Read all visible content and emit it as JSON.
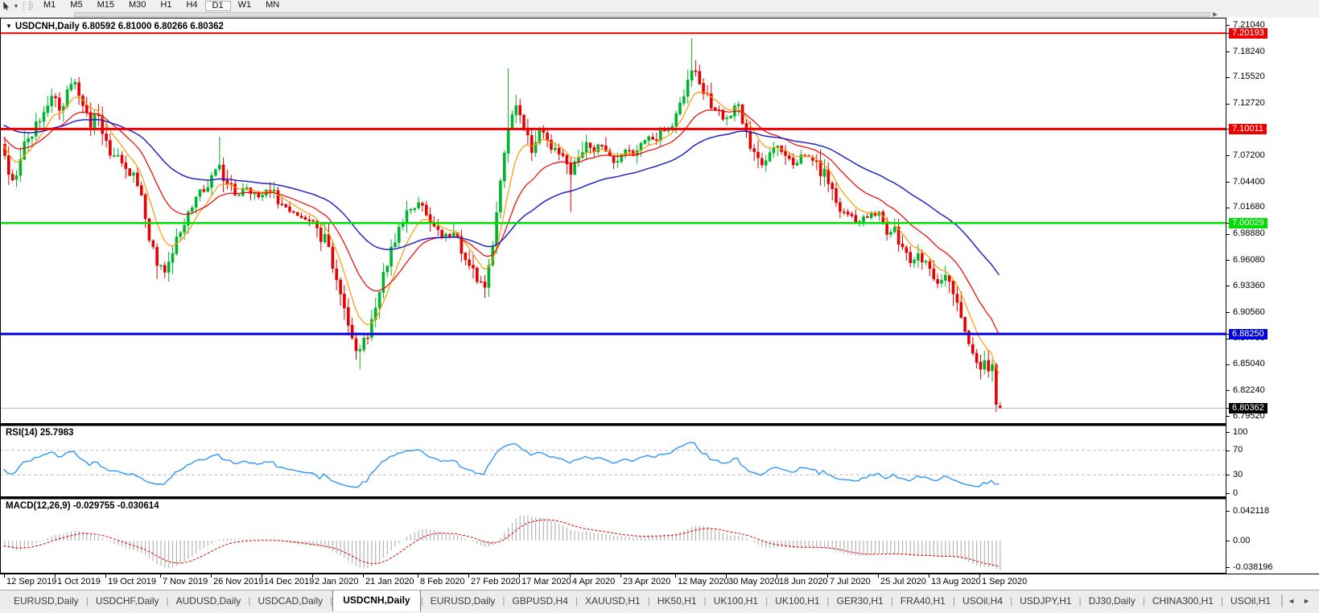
{
  "toolbar": {
    "timeframes": [
      "M1",
      "M5",
      "M15",
      "M30",
      "H1",
      "H4",
      "D1",
      "W1",
      "MN"
    ],
    "active_timeframe": "D1",
    "tool_icon": "crosshair-cursor-icon",
    "dropdown_caret": "▾"
  },
  "chart": {
    "title": "USDCNH,Daily",
    "ohlc_line": "6.80592 6.81000 6.80266 6.80362",
    "dropdown_glyph": "▼"
  },
  "chart_data": {
    "type": "candlestick",
    "symbol": "USDCNH",
    "timeframe": "Daily",
    "bars_count": 256,
    "last_bar": {
      "open": 6.80592,
      "high": 6.81,
      "low": 6.80266,
      "close": 6.80362
    },
    "close_anchors": [
      [
        0,
        7.072
      ],
      [
        2,
        7.046
      ],
      [
        4,
        7.068
      ],
      [
        6,
        7.09
      ],
      [
        8,
        7.108
      ],
      [
        10,
        7.118
      ],
      [
        12,
        7.135
      ],
      [
        14,
        7.12
      ],
      [
        16,
        7.142
      ],
      [
        18,
        7.15
      ],
      [
        20,
        7.125
      ],
      [
        22,
        7.102
      ],
      [
        24,
        7.115
      ],
      [
        26,
        7.088
      ],
      [
        28,
        7.072
      ],
      [
        31,
        7.058
      ],
      [
        34,
        7.04
      ],
      [
        36,
        7.005
      ],
      [
        38,
        6.975
      ],
      [
        39,
        6.955,
        null,
        6.941
      ],
      [
        41,
        6.948
      ],
      [
        43,
        6.968
      ],
      [
        45,
        6.99
      ],
      [
        47,
        7.012
      ],
      [
        49,
        7.028
      ],
      [
        52,
        7.038
      ],
      [
        55,
        7.062,
        7.092
      ],
      [
        57,
        7.042
      ],
      [
        59,
        7.03
      ],
      [
        62,
        7.038
      ],
      [
        65,
        7.028
      ],
      [
        68,
        7.034
      ],
      [
        71,
        7.02
      ],
      [
        74,
        7.012
      ],
      [
        77,
        7.004
      ],
      [
        80,
        6.995
      ],
      [
        83,
        6.975
      ],
      [
        85,
        6.94
      ],
      [
        87,
        6.91
      ],
      [
        89,
        6.878
      ],
      [
        91,
        6.866,
        null,
        6.845
      ],
      [
        93,
        6.878
      ],
      [
        95,
        6.91
      ],
      [
        97,
        6.948
      ],
      [
        99,
        6.975
      ],
      [
        102,
        7.0
      ],
      [
        104,
        7.015
      ],
      [
        106,
        7.022
      ],
      [
        109,
        7.0
      ],
      [
        112,
        6.985
      ],
      [
        115,
        6.99
      ],
      [
        117,
        6.968
      ],
      [
        119,
        6.955
      ],
      [
        121,
        6.938
      ],
      [
        123,
        6.932,
        null,
        6.921
      ],
      [
        125,
        6.975
      ],
      [
        127,
        7.045
      ],
      [
        129,
        7.1,
        7.1645
      ],
      [
        131,
        7.125
      ],
      [
        133,
        7.1
      ],
      [
        135,
        7.075
      ],
      [
        137,
        7.1
      ],
      [
        139,
        7.088
      ],
      [
        141,
        7.08
      ],
      [
        143,
        7.072
      ],
      [
        145,
        7.052,
        null,
        7.012
      ],
      [
        147,
        7.07
      ],
      [
        149,
        7.086
      ],
      [
        151,
        7.076
      ],
      [
        153,
        7.082
      ],
      [
        155,
        7.072
      ],
      [
        157,
        7.066
      ],
      [
        159,
        7.078
      ],
      [
        161,
        7.072
      ],
      [
        163,
        7.085
      ],
      [
        165,
        7.092
      ],
      [
        167,
        7.088
      ],
      [
        169,
        7.098
      ],
      [
        171,
        7.103
      ],
      [
        173,
        7.128
      ],
      [
        175,
        7.152
      ],
      [
        176,
        7.162,
        7.1965
      ],
      [
        178,
        7.148
      ],
      [
        180,
        7.138
      ],
      [
        182,
        7.12
      ],
      [
        185,
        7.112
      ],
      [
        188,
        7.126
      ],
      [
        190,
        7.098
      ],
      [
        192,
        7.076
      ],
      [
        194,
        7.062
      ],
      [
        196,
        7.075
      ],
      [
        198,
        7.082
      ],
      [
        200,
        7.072
      ],
      [
        202,
        7.062
      ],
      [
        205,
        7.072
      ],
      [
        208,
        7.066
      ],
      [
        211,
        7.042
      ],
      [
        213,
        7.022
      ],
      [
        215,
        7.012
      ],
      [
        217,
        7.008
      ],
      [
        219,
        7.002
      ],
      [
        221,
        7.006
      ],
      [
        224,
        7.012
      ],
      [
        226,
        6.988
      ],
      [
        228,
        6.996
      ],
      [
        230,
        6.975
      ],
      [
        232,
        6.958
      ],
      [
        234,
        6.968
      ],
      [
        237,
        6.952
      ],
      [
        239,
        6.936
      ],
      [
        241,
        6.945
      ],
      [
        243,
        6.925
      ],
      [
        245,
        6.9
      ],
      [
        246,
        6.885
      ],
      [
        247,
        6.872
      ],
      [
        248,
        6.862
      ],
      [
        249,
        6.852
      ],
      [
        250,
        6.845
      ],
      [
        251,
        6.854
      ],
      [
        252,
        6.843
      ],
      [
        253,
        6.85
      ],
      [
        254,
        6.8075
      ],
      [
        255,
        6.80362
      ]
    ],
    "y_axis": {
      "ticks": [
        "7.21040",
        "7.18240",
        "7.15520",
        "7.12720",
        "7.07200",
        "7.04400",
        "7.01680",
        "6.98880",
        "6.96080",
        "6.93360",
        "6.90560",
        "6.87760",
        "6.85040",
        "6.82240",
        "6.79520"
      ]
    },
    "x_axis": {
      "labels": [
        {
          "text": "12 Sep 2019",
          "day": 0
        },
        {
          "text": "1 Oct 2019",
          "day": 13
        },
        {
          "text": "19 Oct 2019",
          "day": 26
        },
        {
          "text": "7 Nov 2019",
          "day": 40
        },
        {
          "text": "26 Nov 2019",
          "day": 53
        },
        {
          "text": "14 Dec 2019",
          "day": 66
        },
        {
          "text": "2 Jan 2020",
          "day": 79
        },
        {
          "text": "21 Jan 2020",
          "day": 92
        },
        {
          "text": "8 Feb 2020",
          "day": 106
        },
        {
          "text": "27 Feb 2020",
          "day": 119
        },
        {
          "text": "17 Mar 2020",
          "day": 132
        },
        {
          "text": "4 Apr 2020",
          "day": 145
        },
        {
          "text": "23 Apr 2020",
          "day": 158
        },
        {
          "text": "12 May 2020",
          "day": 172
        },
        {
          "text": "30 May 2020",
          "day": 185
        },
        {
          "text": "18 Jun 2020",
          "day": 198
        },
        {
          "text": "7 Jul 2020",
          "day": 211
        },
        {
          "text": "25 Jul 2020",
          "day": 224
        },
        {
          "text": "13 Aug 2020",
          "day": 237
        },
        {
          "text": "1 Sep 2020",
          "day": 250
        }
      ]
    },
    "hlines": [
      {
        "price": 7.20193,
        "label": "7.20193",
        "color": "#ee0000",
        "width": 2
      },
      {
        "price": 7.10011,
        "label": "7.10011",
        "color": "#ee0000",
        "width": 3
      },
      {
        "price": 7.00029,
        "label": "7.00029",
        "color": "#00dd00",
        "width": 2.5
      },
      {
        "price": 6.8825,
        "label": "6.88250",
        "color": "#0000dd",
        "width": 3
      }
    ],
    "current_price": {
      "value": 6.80362,
      "label": "6.80362",
      "badge_bg": "#000000",
      "line_color": "#b8b8b8"
    },
    "moving_averages": [
      {
        "period": 8,
        "color": "#ff9900"
      },
      {
        "period": 20,
        "color": "#f40000"
      },
      {
        "period": 50,
        "color": "#2323cb"
      }
    ],
    "rsi": {
      "label": "RSI(14) 25.7983",
      "period": 14,
      "value": 25.7983,
      "levels": [
        70,
        30
      ],
      "scale": [
        "100",
        "70",
        "30",
        "0"
      ],
      "line_color": "#1e90ff"
    },
    "macd": {
      "label": "MACD(12,26,9) -0.029755 -0.030614",
      "params": [
        12,
        26,
        9
      ],
      "main_value": -0.029755,
      "signal_value": -0.030614,
      "scale_labels": [
        "0.042118",
        "0.00",
        "-0.038196"
      ],
      "hist_color": "#b5b5b5",
      "signal_color": "#dd0000"
    },
    "colors": {
      "bull": "#00b32c",
      "bear": "#e60000",
      "background": "#ffffff"
    }
  },
  "tabs": {
    "items": [
      "EURUSD,Daily",
      "USDCHF,Daily",
      "AUDUSD,Daily",
      "USDCAD,Daily",
      "USDCNH,Daily",
      "EURUSD,Daily",
      "GBPUSD,H4",
      "XAUUSD,H1",
      "HK50,H1",
      "UK100,H1",
      "UK100,H1",
      "GER30,H1",
      "FRA40,H1",
      "USOil,H4",
      "USDJPY,H1",
      "DJ30,Daily",
      "CHINA300,H1",
      "USOil,H1"
    ],
    "active_index": 4,
    "scroll_left": "◄",
    "scroll_right": "►"
  }
}
